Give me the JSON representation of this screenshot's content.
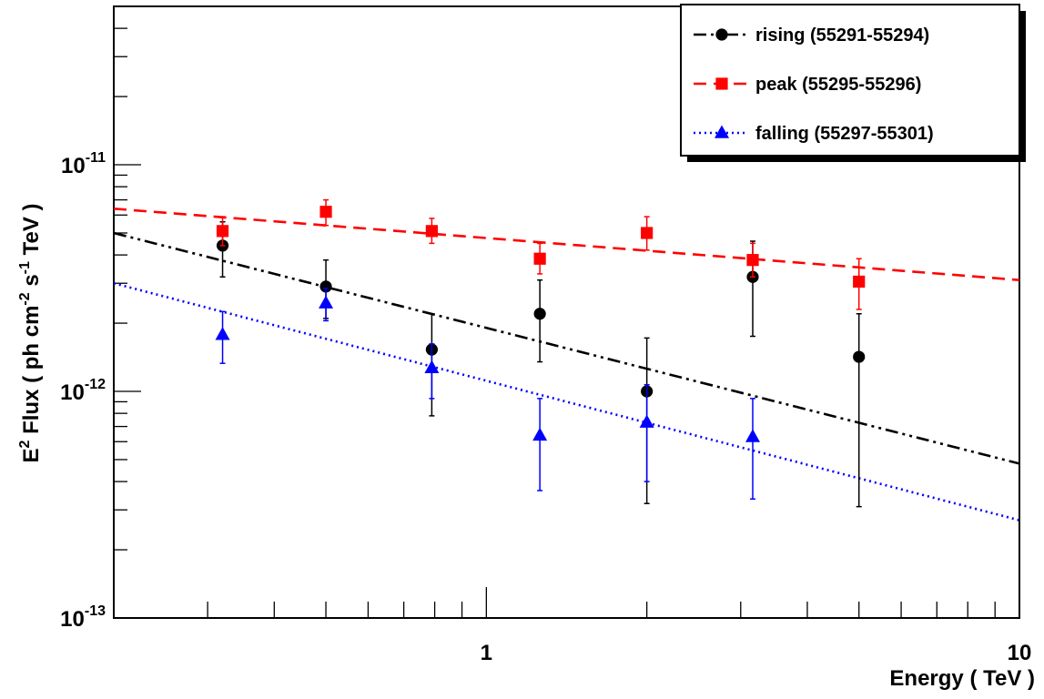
{
  "chart_data": {
    "type": "scatter",
    "x_scale": "log",
    "y_scale": "log",
    "xlim": [
      0.2,
      10
    ],
    "ylim": [
      1e-13,
      5e-11
    ],
    "xlabel": "Energy ( TeV )",
    "ylabel_parts": {
      "e": "E",
      "e_exp": "2",
      "flux": " Flux ( ph cm",
      "cm_exp": "-2",
      "s": " s",
      "s_exp": "-1",
      "tev": " TeV )"
    },
    "x_tick_labels": [
      {
        "value": 1,
        "label": "1"
      },
      {
        "value": 10,
        "label": "10"
      }
    ],
    "y_tick_labels": [
      {
        "value": 1e-13,
        "base": "10",
        "exp": "-13"
      },
      {
        "value": 1e-12,
        "base": "10",
        "exp": "-12"
      },
      {
        "value": 1e-11,
        "base": "10",
        "exp": "-11"
      }
    ],
    "legend_position": "top-right",
    "series": [
      {
        "name": "rising (55291-55294)",
        "color": "#000000",
        "marker": "circle",
        "line_style": "dash-dot-dot",
        "fit": {
          "x": [
            0.2,
            10
          ],
          "y": [
            5e-12,
            4.8e-13
          ]
        },
        "points": [
          {
            "x": 0.32,
            "y": 4.4e-12,
            "ylo": 3.2e-12,
            "yhi": 5.6e-12
          },
          {
            "x": 0.5,
            "y": 2.9e-12,
            "ylo": 2.1e-12,
            "yhi": 3.8e-12
          },
          {
            "x": 0.79,
            "y": 1.53e-12,
            "ylo": 7.8e-13,
            "yhi": 2.2e-12
          },
          {
            "x": 1.26,
            "y": 2.2e-12,
            "ylo": 1.35e-12,
            "yhi": 3.1e-12
          },
          {
            "x": 2.0,
            "y": 1e-12,
            "ylo": 3.2e-13,
            "yhi": 1.72e-12
          },
          {
            "x": 3.16,
            "y": 3.2e-12,
            "ylo": 1.75e-12,
            "yhi": 4.6e-12
          },
          {
            "x": 5.0,
            "y": 1.42e-12,
            "ylo": 3.1e-13,
            "yhi": 2.2e-12
          }
        ]
      },
      {
        "name": "peak (55295-55296)",
        "color": "#ff0000",
        "marker": "square",
        "line_style": "dashed",
        "fit": {
          "x": [
            0.2,
            10
          ],
          "y": [
            6.4e-12,
            3.1e-12
          ]
        },
        "points": [
          {
            "x": 0.32,
            "y": 5.1e-12,
            "ylo": 4.4e-12,
            "yhi": 5.9e-12
          },
          {
            "x": 0.5,
            "y": 6.2e-12,
            "ylo": 5.4e-12,
            "yhi": 7e-12
          },
          {
            "x": 0.79,
            "y": 5.1e-12,
            "ylo": 4.5e-12,
            "yhi": 5.8e-12
          },
          {
            "x": 1.26,
            "y": 3.85e-12,
            "ylo": 3.3e-12,
            "yhi": 4.5e-12
          },
          {
            "x": 2.0,
            "y": 5e-12,
            "ylo": 4.2e-12,
            "yhi": 5.9e-12
          },
          {
            "x": 3.16,
            "y": 3.8e-12,
            "ylo": 3.2e-12,
            "yhi": 4.5e-12
          },
          {
            "x": 5.0,
            "y": 3.05e-12,
            "ylo": 2.3e-12,
            "yhi": 3.85e-12
          }
        ]
      },
      {
        "name": "falling (55297-55301)",
        "color": "#0000ff",
        "marker": "triangle",
        "line_style": "dotted",
        "fit": {
          "x": [
            0.2,
            10
          ],
          "y": [
            3e-12,
            2.7e-13
          ]
        },
        "points": [
          {
            "x": 0.32,
            "y": 1.78e-12,
            "ylo": 1.33e-12,
            "yhi": 2.25e-12
          },
          {
            "x": 0.5,
            "y": 2.45e-12,
            "ylo": 2.05e-12,
            "yhi": 2.85e-12
          },
          {
            "x": 0.79,
            "y": 1.27e-12,
            "ylo": 9.3e-13,
            "yhi": 1.62e-12
          },
          {
            "x": 1.26,
            "y": 6.4e-13,
            "ylo": 3.65e-13,
            "yhi": 9.3e-13
          },
          {
            "x": 2.0,
            "y": 7.3e-13,
            "ylo": 4e-13,
            "yhi": 1.07e-12
          },
          {
            "x": 3.16,
            "y": 6.3e-13,
            "ylo": 3.35e-13,
            "yhi": 9.3e-13
          }
        ]
      }
    ]
  }
}
